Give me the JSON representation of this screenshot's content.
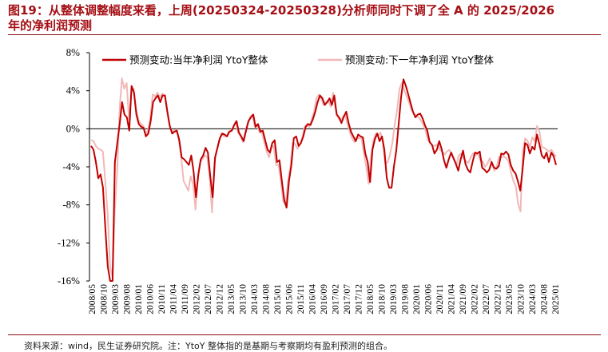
{
  "header": {
    "title_line1": "图19：从整体调整幅度来看，上周(20250324-20250328)分析师同时下调了全 A 的 2025/2026",
    "title_line2": "年的净利润预测"
  },
  "footer": {
    "source": "资料来源：wind，民生证券研究院。注：YtoY 整体指的是基期与考察期均有盈利预测的组合。"
  },
  "colors": {
    "title": "#a50f15",
    "series_current": "#c00000",
    "series_next": "#f2b8b8",
    "zero_line": "#000000"
  },
  "chart_data": {
    "type": "line",
    "y_ticks": [
      "8%",
      "4%",
      "0%",
      "-4%",
      "-8%",
      "-12%",
      "-16%"
    ],
    "y_tick_values": [
      8,
      4,
      0,
      -4,
      -8,
      -12,
      -16
    ],
    "ylim": [
      -16,
      8
    ],
    "x_ticks": [
      "2008/05",
      "2008/10",
      "2009/03",
      "2009/08",
      "2010/01",
      "2010/06",
      "2010/11",
      "2011/04",
      "2011/09",
      "2012/02",
      "2012/07",
      "2012/12",
      "2013/05",
      "2013/10",
      "2014/03",
      "2014/08",
      "2015/01",
      "2015/06",
      "2015/11",
      "2016/04",
      "2016/09",
      "2017/02",
      "2017/07",
      "2017/12",
      "2018/05",
      "2018/10",
      "2019/03",
      "2019/08",
      "2020/01",
      "2020/06",
      "2020/11",
      "2021/04",
      "2021/09",
      "2022/02",
      "2022/07",
      "2022/12",
      "2023/05",
      "2023/10",
      "2024/03",
      "2024/08",
      "2025/01"
    ],
    "legend_position": "top",
    "series": [
      {
        "name": "预测变动:当年净利润 YtoY整体",
        "values": [
          -1.8,
          -2.2,
          -3.5,
          -5.2,
          -4.8,
          -6.2,
          -10.5,
          -14.5,
          -16,
          -16,
          -3.5,
          -1.5,
          0.5,
          2.8,
          1.5,
          1.2,
          -0.2,
          4.5,
          3.8,
          1.5,
          0.5,
          0.2,
          0.1,
          -0.8,
          -0.5,
          0.8,
          2.8,
          3.2,
          3.5,
          2.8,
          3.5,
          3.5,
          1.8,
          0.3,
          -0.5,
          -0.3,
          -0.2,
          -1.2,
          -3,
          -3.2,
          -3.5,
          -3.8,
          -2.8,
          -4.5,
          -7.2,
          -4.8,
          -3.2,
          -2.8,
          -2,
          -2.5,
          -5,
          -7.2,
          -3,
          -2,
          -1,
          -0.5,
          -0.6,
          -0.8,
          -0.3,
          -0.2,
          0.4,
          0.8,
          -0.4,
          -0.8,
          -1.3,
          -0.2,
          0.8,
          1.2,
          1.5,
          0.2,
          0.5,
          -0.3,
          -0.2,
          -1.2,
          -2.2,
          -2.5,
          -1.5,
          -1.2,
          -3.5,
          -3.3,
          -5.5,
          -7.5,
          -8.3,
          -5.5,
          -3.8,
          -1,
          -0.8,
          -1.8,
          -1.5,
          -0.8,
          0.2,
          0.5,
          0.4,
          1,
          1.8,
          2.8,
          3.5,
          3.2,
          2.5,
          2.8,
          3.2,
          2.5,
          3.5,
          1.5,
          1.2,
          0.6,
          1.3,
          1.8,
          0.6,
          -0.3,
          -0.8,
          -1.3,
          -0.6,
          -0.8,
          -0.9,
          -2.6,
          -3.5,
          -5.6,
          -2.2,
          -1.1,
          -0.5,
          -1.3,
          -0.8,
          -2.2,
          -5.2,
          -6.2,
          -6.2,
          -4,
          -2.3,
          0.5,
          3.3,
          5.2,
          4.5,
          3.6,
          2.7,
          1.8,
          1.2,
          1.5,
          1.6,
          1.1,
          0.4,
          -0.2,
          -1.4,
          -1.7,
          -2.6,
          -2.2,
          -1.3,
          -2.1,
          -3.3,
          -4.1,
          -3.2,
          -2.5,
          -3.1,
          -3.7,
          -4.4,
          -3.2,
          -2.3,
          -3.7,
          -4.3,
          -4.6,
          -3.5,
          -2.5,
          -2.6,
          -2.4,
          -4.1,
          -4.3,
          -4.6,
          -4.3,
          -3.5,
          -4.1,
          -4.2,
          -3.9,
          -2.6,
          -2.7,
          -2.4,
          -2.7,
          -3.8,
          -4.4,
          -4.7,
          -5.5,
          -6.5,
          -4.2,
          -1.5,
          -1.7,
          -2.6,
          -1.9,
          -2.2,
          -0.6,
          -1.6,
          -2.8,
          -3.1,
          -2.5,
          -3.5,
          -2.5,
          -2.9,
          -3.8
        ]
      },
      {
        "name": "预测变动:下一年净利润 YtoY整体",
        "values": [
          -1.2,
          -1.3,
          -1.8,
          -2.1,
          -2.2,
          -2.4,
          -5.5,
          -9,
          -14.5,
          -15.5,
          -8.5,
          -4.5,
          2,
          5.3,
          4.2,
          4.8,
          1,
          4,
          4.2,
          2,
          0.9,
          0.5,
          0.3,
          -0.5,
          -0.2,
          1.2,
          3.6,
          3.4,
          3.8,
          3.3,
          3.7,
          3.5,
          1.9,
          0.4,
          -0.3,
          -0.2,
          -0.1,
          -1.2,
          -3,
          -5.5,
          -6,
          -6.5,
          -5,
          -5.8,
          -8.5,
          -5,
          -3.5,
          -3.2,
          -2.8,
          -3,
          -5.2,
          -8.8,
          -3.5,
          -2.2,
          -1.2,
          -0.5,
          -0.8,
          -0.8,
          -0.3,
          -0.2,
          0.2,
          0.8,
          -0.4,
          -0.8,
          -1.4,
          -0.3,
          0.6,
          1.2,
          1.5,
          0.2,
          0.5,
          -0.4,
          -0.4,
          -1.4,
          -2.4,
          -3,
          -2,
          -1.8,
          -3.8,
          -3.8,
          -5.5,
          -7.6,
          -8,
          -5.5,
          -4,
          -1.5,
          -1.6,
          -2.1,
          -1.7,
          -1,
          0.2,
          0.5,
          0.2,
          1,
          1.8,
          3.2,
          3.6,
          3.2,
          2.5,
          2.8,
          3,
          2.3,
          3.8,
          2.2,
          1.2,
          0.9,
          1.2,
          1.5,
          0.6,
          -0.3,
          -1,
          -1.4,
          -0.9,
          -1,
          -1,
          -2.6,
          -4,
          -5.8,
          -2.9,
          -1.2,
          -0.5,
          -0.7,
          -0.4,
          -1.5,
          -3.7,
          -3.5,
          -2.7,
          -1.5,
          0.5,
          2,
          4.2,
          4.8,
          4.1,
          3.4,
          2.8,
          2,
          1.6,
          1.4,
          1.2,
          0.9,
          0.4,
          -0.2,
          -1.2,
          -1.5,
          -1.8,
          -1.8,
          -1.6,
          -2.2,
          -2.4,
          -2.7,
          -2.4,
          -2.2,
          -2.7,
          -3.3,
          -3.8,
          -2.8,
          -2.6,
          -3.1,
          -3.4,
          -3.6,
          -3,
          -2.6,
          -2.8,
          -2.6,
          -3.3,
          -3.4,
          -4,
          -3.7,
          -3.1,
          -3.7,
          -4.4,
          -4,
          -2.9,
          -3,
          -2.9,
          -3.1,
          -3.4,
          -4.6,
          -5.5,
          -6,
          -7.9,
          -8.7,
          -2.3,
          -1,
          -1.3,
          -1.9,
          -0.9,
          -1.3,
          0.3,
          -0.3,
          -1.9,
          -2,
          -2.2,
          -2.4,
          -2.2,
          -2.6,
          -2.9
        ]
      }
    ]
  }
}
